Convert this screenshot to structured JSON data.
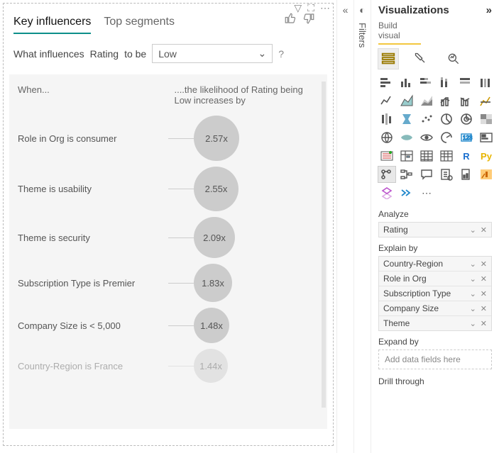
{
  "colors": {
    "accent": "#0d8f8a",
    "bubble": "#cccccc",
    "chartBg": "#f5f5f5"
  },
  "visual": {
    "tabs": {
      "active": "Key influencers",
      "inactive": "Top segments"
    },
    "prompt": {
      "prefix": "What influences",
      "measure": "Rating",
      "suffix": "to be"
    },
    "dropdown": {
      "value": "Low"
    },
    "help": "?",
    "header": {
      "left": "When...",
      "right": "....the likelihood of Rating being Low increases by"
    },
    "influencers": [
      {
        "label": "Role in Org is consumer",
        "value": "2.57x",
        "size": 64,
        "opacity": 1.0
      },
      {
        "label": "Theme is usability",
        "value": "2.55x",
        "size": 63,
        "opacity": 1.0
      },
      {
        "label": "Theme is security",
        "value": "2.09x",
        "size": 58,
        "opacity": 1.0
      },
      {
        "label": "Subscription Type is Premier",
        "value": "1.83x",
        "size": 54,
        "opacity": 1.0
      },
      {
        "label": "Company Size is < 5,000",
        "value": "1.48x",
        "size": 50,
        "opacity": 1.0
      },
      {
        "label": "Country-Region is France",
        "value": "1.44x",
        "size": 48,
        "opacity": 0.45
      }
    ]
  },
  "rail": {
    "label": "Filters"
  },
  "right": {
    "title": "Visualizations",
    "subhead": "Build visual",
    "analyze": {
      "title": "Analyze",
      "items": [
        "Rating"
      ]
    },
    "explain": {
      "title": "Explain by",
      "items": [
        "Country-Region",
        "Role in Org",
        "Subscription Type",
        "Company Size",
        "Theme"
      ]
    },
    "expand": {
      "title": "Expand by",
      "placeholder": "Add data fields here"
    },
    "drill": {
      "title": "Drill through"
    }
  }
}
